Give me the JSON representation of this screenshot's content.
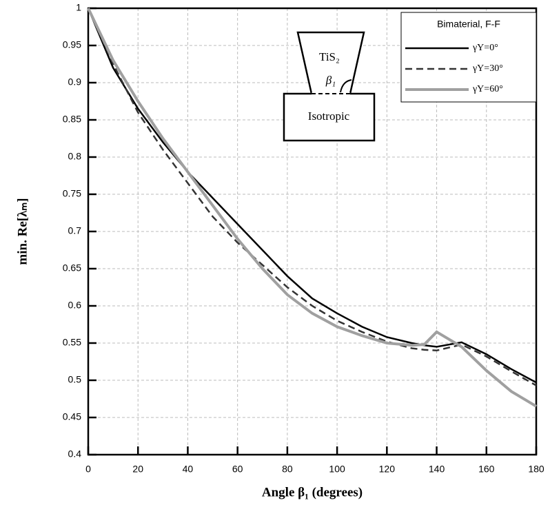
{
  "chart_data": {
    "type": "line",
    "x_label": "Angle β₁ (degrees)",
    "y_label": "min. Re[λₘ]",
    "legend_title": "Bimaterial, F-F",
    "annotations": [
      "TiS₂",
      "β₁",
      "Isotropic"
    ],
    "x": [
      0,
      10,
      20,
      30,
      40,
      50,
      60,
      70,
      80,
      90,
      100,
      110,
      120,
      130,
      135,
      140,
      150,
      160,
      170,
      180
    ],
    "series": [
      {
        "name": "γY=0°",
        "color": "#000000",
        "dash": "solid",
        "values": [
          1,
          0.92,
          0.865,
          0.82,
          0.78,
          0.745,
          0.71,
          0.675,
          0.64,
          0.61,
          0.59,
          0.572,
          0.558,
          0.55,
          0.547,
          0.545,
          0.551,
          0.535,
          0.515,
          0.497
        ]
      },
      {
        "name": "γY=30°",
        "color": "#333333",
        "dash": "dashed",
        "values": [
          1,
          0.925,
          0.86,
          0.81,
          0.765,
          0.72,
          0.685,
          0.655,
          0.625,
          0.6,
          0.58,
          0.565,
          0.552,
          0.543,
          0.541,
          0.54,
          0.548,
          0.532,
          0.512,
          0.493
        ]
      },
      {
        "name": "γY=60°",
        "color": "#a0a0a0",
        "dash": "solid",
        "values": [
          1,
          0.93,
          0.875,
          0.825,
          0.78,
          0.735,
          0.69,
          0.65,
          0.615,
          0.59,
          0.572,
          0.56,
          0.55,
          0.547,
          0.548,
          0.565,
          0.545,
          0.513,
          0.485,
          0.465
        ]
      }
    ],
    "xlim": [
      0,
      180
    ],
    "xticks": [
      0,
      20,
      40,
      60,
      80,
      100,
      120,
      140,
      160,
      180
    ],
    "ylim": [
      0.4,
      1
    ],
    "yticks": [
      0.4,
      0.45,
      0.5,
      0.55,
      0.6,
      0.65,
      0.7,
      0.75,
      0.8,
      0.85,
      0.9,
      0.95,
      1
    ],
    "grid": true,
    "legend_position": "upper right"
  }
}
